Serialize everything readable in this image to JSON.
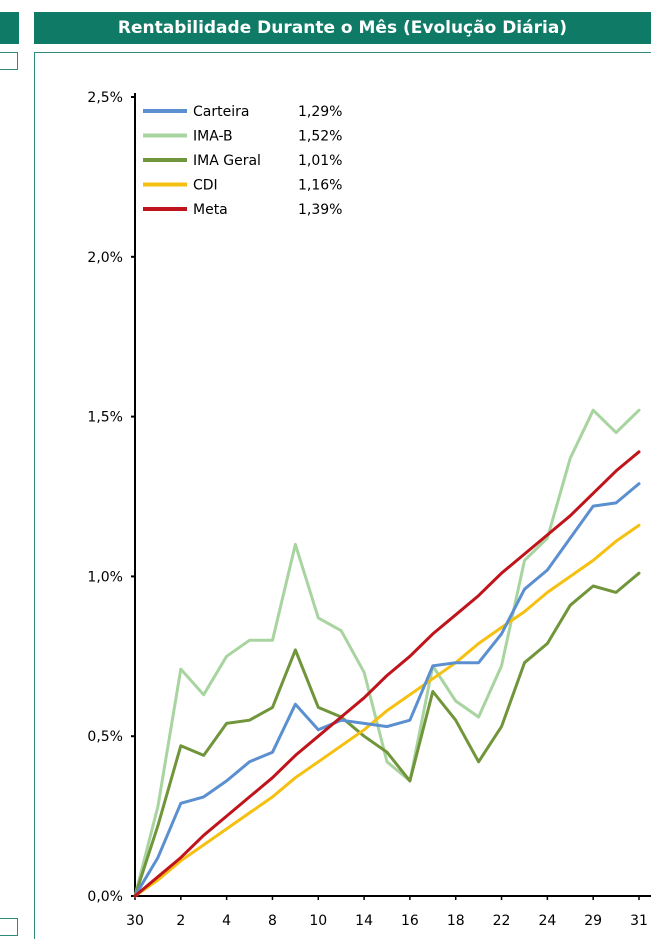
{
  "header": {
    "title": "Rentabilidade Durante o Mês (Evolução Diária)"
  },
  "chart_data": {
    "type": "line",
    "title": "Rentabilidade Durante o Mês (Evolução Diária)",
    "xlabel": "",
    "ylabel": "",
    "x": [
      "30",
      "1",
      "2",
      "3",
      "4",
      "7",
      "8",
      "9",
      "10",
      "11",
      "14",
      "15",
      "16",
      "17",
      "18",
      "21",
      "22",
      "23",
      "24",
      "25",
      "29",
      "30",
      "31"
    ],
    "x_tick_labels": [
      "30",
      "2",
      "4",
      "8",
      "10",
      "14",
      "16",
      "18",
      "22",
      "24",
      "29",
      "31"
    ],
    "ylim": [
      0,
      2.5
    ],
    "y_ticks": [
      "0,0%",
      "0,5%",
      "1,0%",
      "1,5%",
      "2,0%",
      "2,5%"
    ],
    "grid": false,
    "legend_position": "top-left",
    "series": [
      {
        "name": "Carteira",
        "final_label": "1,29%",
        "color": "#5b8fd0",
        "values": [
          0,
          0.12,
          0.29,
          0.31,
          0.36,
          0.42,
          0.45,
          0.6,
          0.52,
          0.55,
          0.54,
          0.53,
          0.55,
          0.72,
          0.73,
          0.73,
          0.82,
          0.96,
          1.02,
          1.12,
          1.22,
          1.23,
          1.29
        ]
      },
      {
        "name": "IMA-B",
        "final_label": "1,52%",
        "color": "#a8d4a0",
        "values": [
          0,
          0.28,
          0.71,
          0.63,
          0.75,
          0.8,
          0.8,
          1.1,
          0.87,
          0.83,
          0.7,
          0.42,
          0.36,
          0.72,
          0.61,
          0.56,
          0.72,
          1.05,
          1.12,
          1.37,
          1.52,
          1.45,
          1.52
        ]
      },
      {
        "name": "IMA Geral",
        "final_label": "1,01%",
        "color": "#71953a",
        "values": [
          0,
          0.22,
          0.47,
          0.44,
          0.54,
          0.55,
          0.59,
          0.77,
          0.59,
          0.56,
          0.5,
          0.45,
          0.36,
          0.64,
          0.55,
          0.42,
          0.53,
          0.73,
          0.79,
          0.91,
          0.97,
          0.95,
          1.01
        ]
      },
      {
        "name": "CDI",
        "final_label": "1,16%",
        "color": "#f5c010",
        "values": [
          0,
          0.05,
          0.11,
          0.16,
          0.21,
          0.26,
          0.31,
          0.37,
          0.42,
          0.47,
          0.52,
          0.58,
          0.63,
          0.68,
          0.73,
          0.79,
          0.84,
          0.89,
          0.95,
          1.0,
          1.05,
          1.11,
          1.16
        ]
      },
      {
        "name": "Meta",
        "final_label": "1,39%",
        "color": "#c0141c",
        "values": [
          0,
          0.06,
          0.12,
          0.19,
          0.25,
          0.31,
          0.37,
          0.44,
          0.5,
          0.56,
          0.62,
          0.69,
          0.75,
          0.82,
          0.88,
          0.94,
          1.01,
          1.07,
          1.13,
          1.19,
          1.26,
          1.33,
          1.39
        ]
      }
    ]
  }
}
